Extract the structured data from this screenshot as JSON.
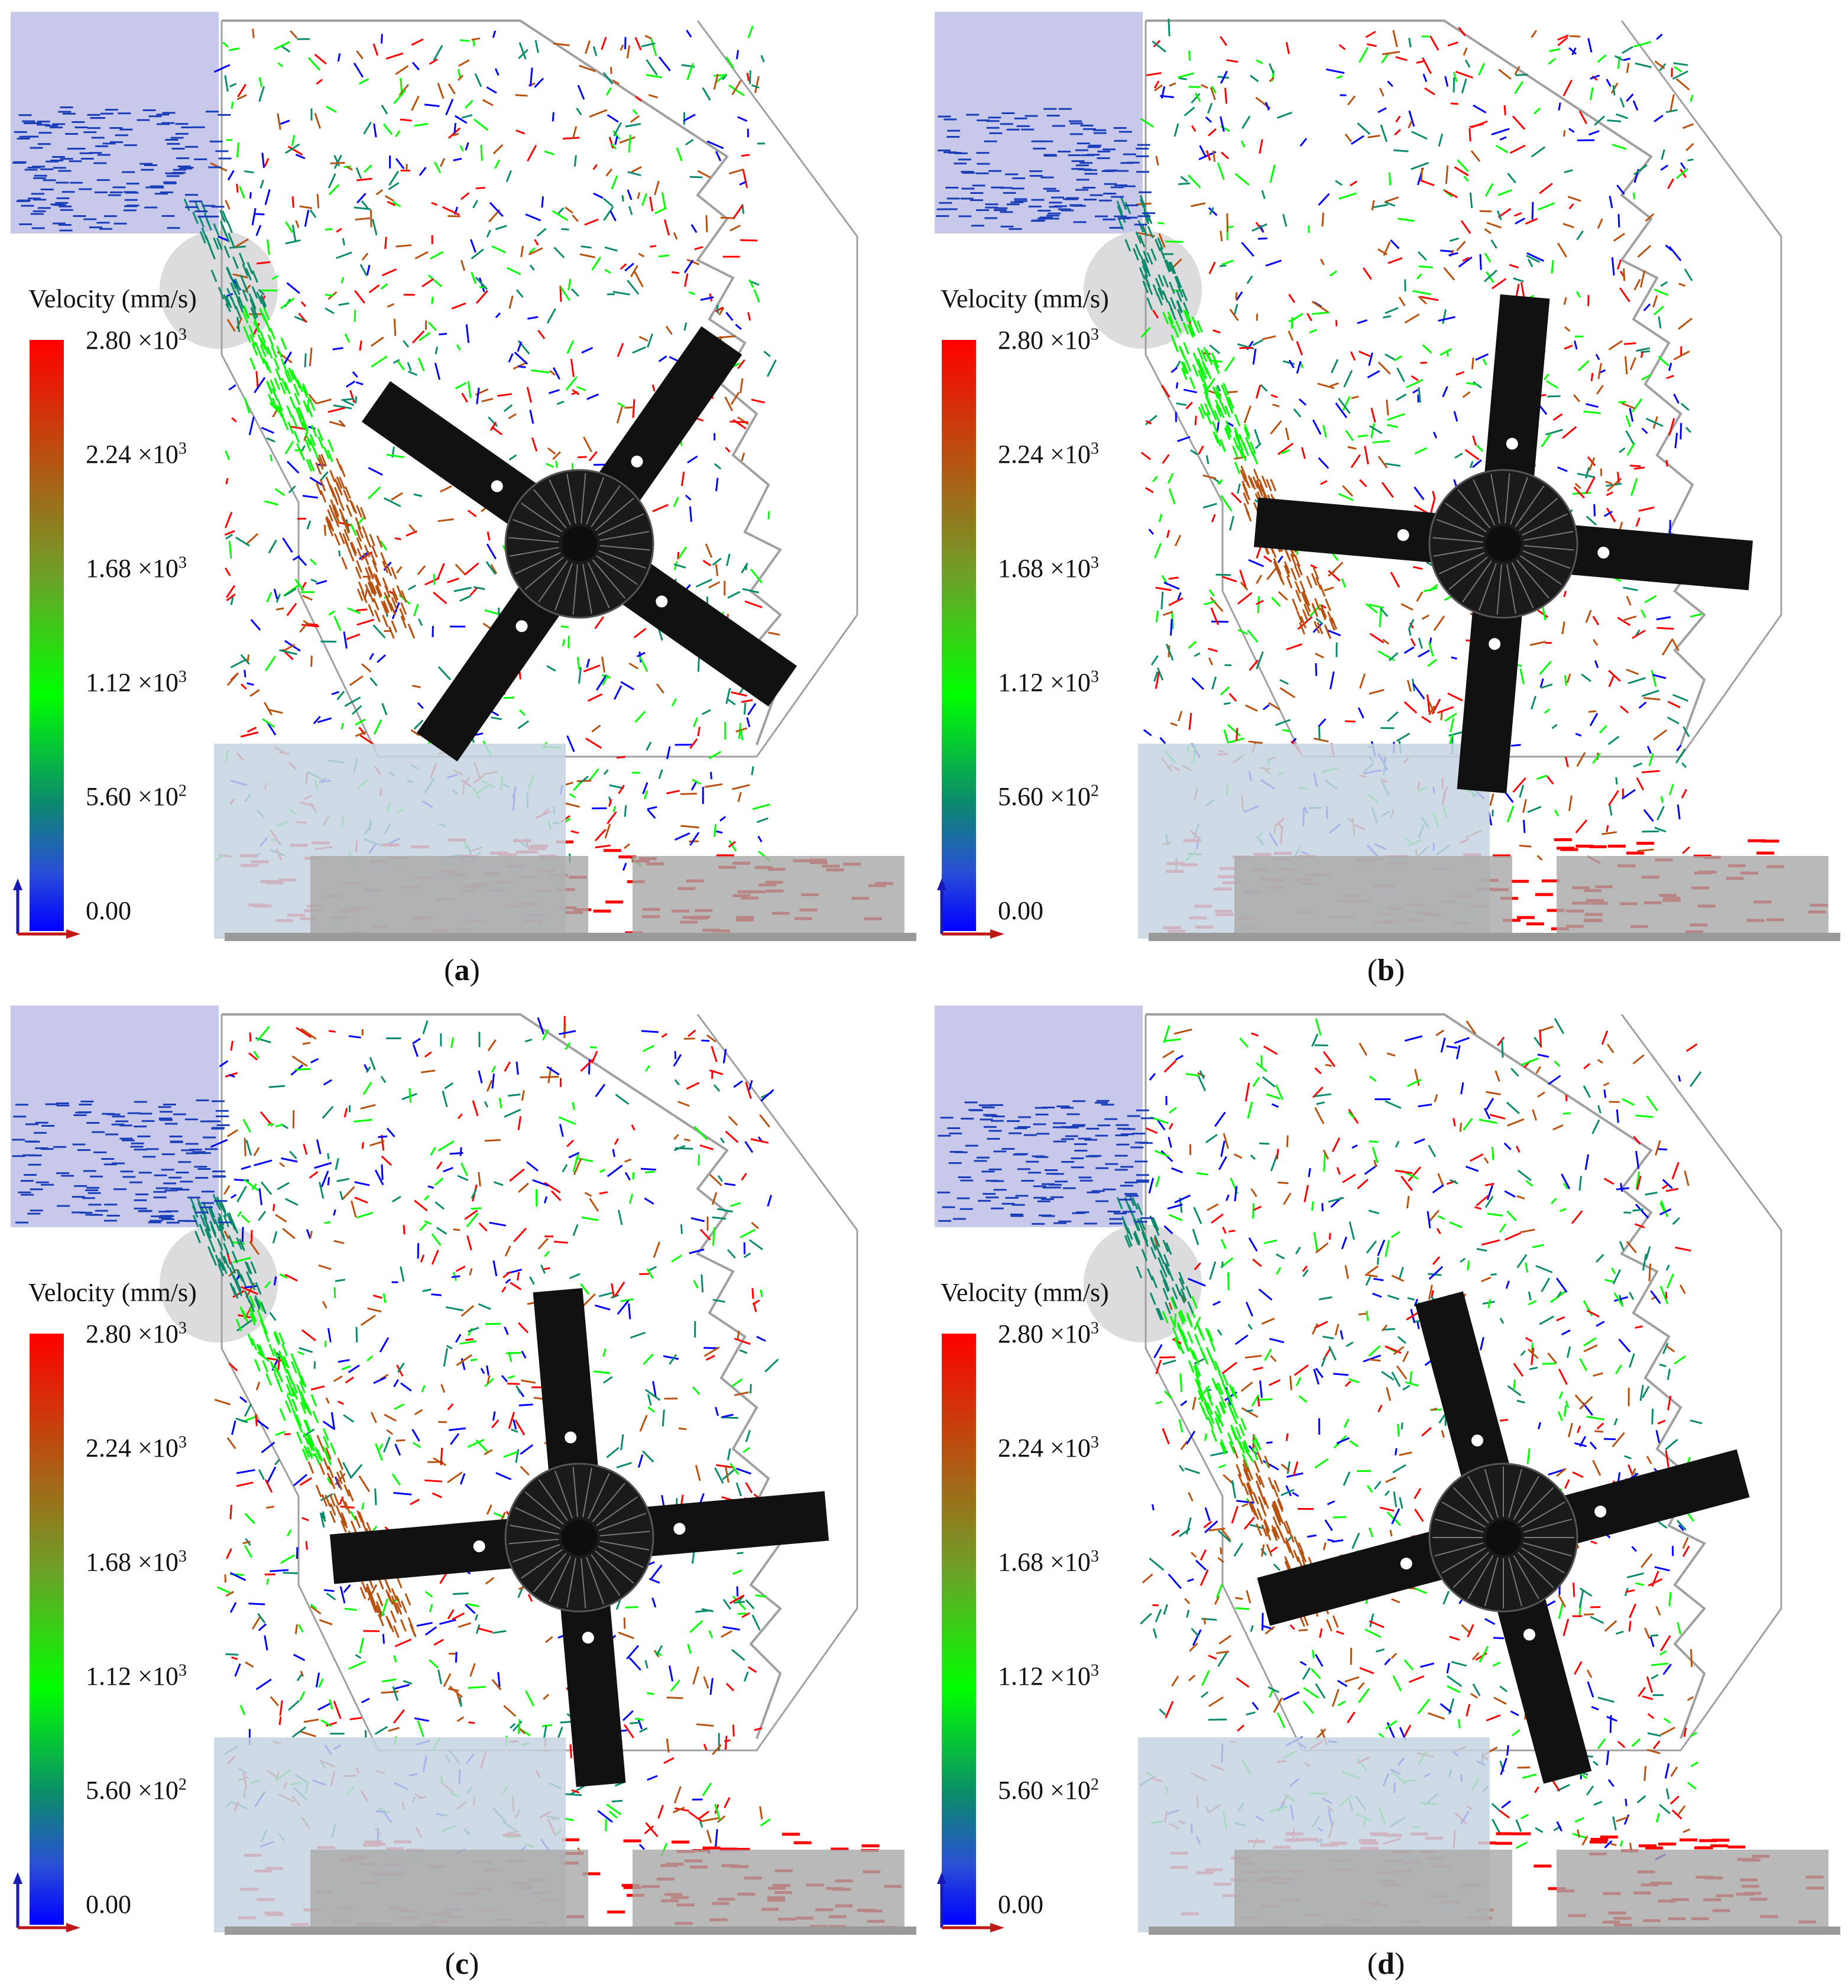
{
  "legend": {
    "title": "Velocity (mm/s)",
    "ticks": [
      {
        "mant": "2.80",
        "times": "×10",
        "exp": "3"
      },
      {
        "mant": "2.24",
        "times": "×10",
        "exp": "3"
      },
      {
        "mant": "1.68",
        "times": "×10",
        "exp": "3"
      },
      {
        "mant": "1.12",
        "times": "×10",
        "exp": "3"
      },
      {
        "mant": "5.60",
        "times": "×10",
        "exp": "2"
      },
      {
        "mant": "0.00",
        "times": "",
        "exp": ""
      }
    ],
    "colors": [
      "#ff0000",
      "#b75210",
      "#00ff00",
      "#0b8b6b",
      "#0000ff"
    ]
  },
  "panels": [
    {
      "label": "a",
      "rotor_angle_deg": 35
    },
    {
      "label": "b",
      "rotor_angle_deg": 5
    },
    {
      "label": "c",
      "rotor_angle_deg": -5
    },
    {
      "label": "d",
      "rotor_angle_deg": -15
    }
  ],
  "colors": {
    "hopper": "#c8c8ea",
    "housing_line": "#a0a0a0",
    "rotor": "#111111",
    "grate": "#c7d3e3",
    "bar": "#a8a8a8"
  }
}
